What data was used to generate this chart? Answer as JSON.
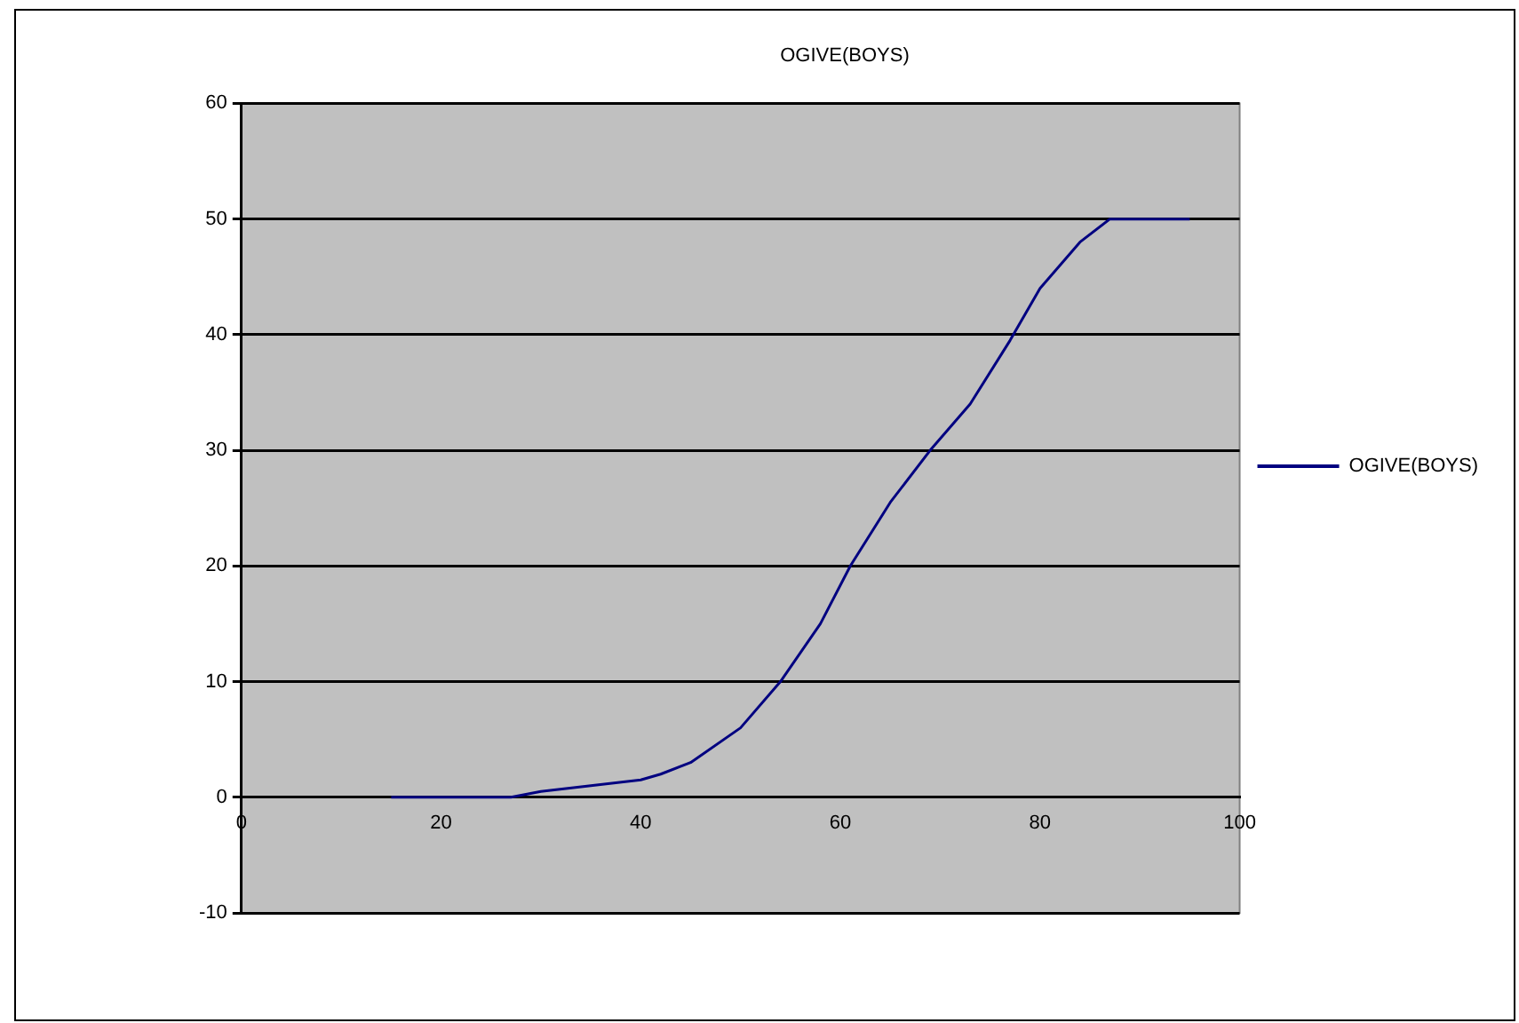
{
  "chart_data": {
    "type": "line",
    "title": "OGIVE(BOYS)",
    "x": [
      15,
      25,
      27,
      30,
      35,
      40,
      42,
      45,
      50,
      54,
      58,
      61,
      65,
      69,
      73,
      77,
      80,
      84,
      87,
      95
    ],
    "series": [
      {
        "name": "OGIVE(BOYS)",
        "color": "#000080",
        "values": [
          0,
          0,
          0,
          0.5,
          1,
          1.5,
          2,
          3,
          6,
          10,
          15,
          20,
          25.5,
          30,
          34,
          39.5,
          44,
          48,
          50,
          50
        ]
      }
    ],
    "xlim": [
      0,
      100
    ],
    "xticks": [
      0,
      20,
      40,
      60,
      80,
      100
    ],
    "ylim": [
      -10,
      60
    ],
    "yticks": [
      -10,
      0,
      10,
      20,
      30,
      40,
      50,
      60
    ],
    "grid": "y",
    "legend": "right",
    "marker": "none",
    "line_style": "solid"
  }
}
